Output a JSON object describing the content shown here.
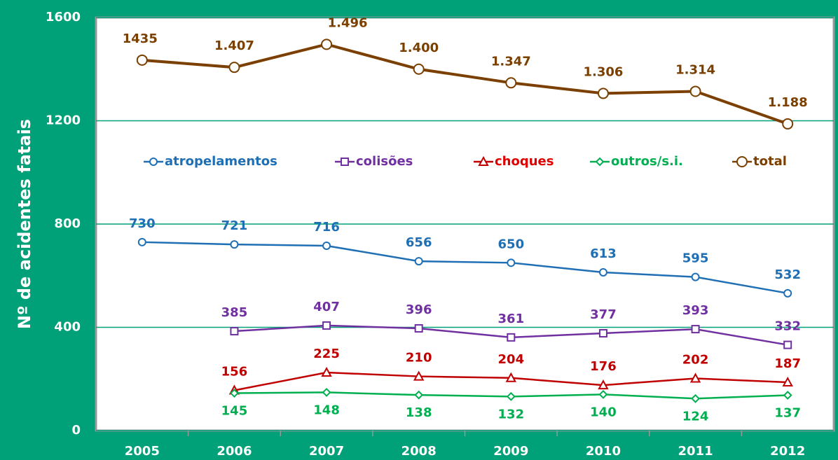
{
  "chart_data": {
    "type": "line",
    "y_label": "Nº de acidentes fatais",
    "categories": [
      "2005",
      "2006",
      "2007",
      "2008",
      "2009",
      "2010",
      "2011",
      "2012"
    ],
    "ylim": [
      0,
      1600
    ],
    "yticks": [
      0,
      400,
      800,
      1200,
      1600
    ],
    "grid": true,
    "series": [
      {
        "name": "atropelamentos",
        "color": "#1f6fb5",
        "marker": "circle",
        "values": [
          730,
          721,
          716,
          656,
          650,
          613,
          595,
          532
        ]
      },
      {
        "name": "colisões",
        "color": "#7030a0",
        "marker": "square",
        "values": [
          null,
          385,
          407,
          396,
          361,
          377,
          393,
          332
        ]
      },
      {
        "name": "choques",
        "color": "#c00000",
        "marker": "triangle",
        "values": [
          null,
          156,
          225,
          210,
          204,
          176,
          202,
          187
        ]
      },
      {
        "name": "outros/s.i.",
        "color": "#00b050",
        "marker": "diamond",
        "values": [
          null,
          145,
          148,
          138,
          132,
          140,
          124,
          137
        ]
      },
      {
        "name": "total",
        "color": "#7b3f00",
        "marker": "bigcircle",
        "values": [
          1435,
          1407,
          1496,
          1400,
          1347,
          1306,
          1314,
          1188
        ],
        "value_labels": [
          "1435",
          "1.407",
          "1.496",
          "1.400",
          "1.347",
          "1.306",
          "1.314",
          "1.188"
        ]
      }
    ]
  }
}
